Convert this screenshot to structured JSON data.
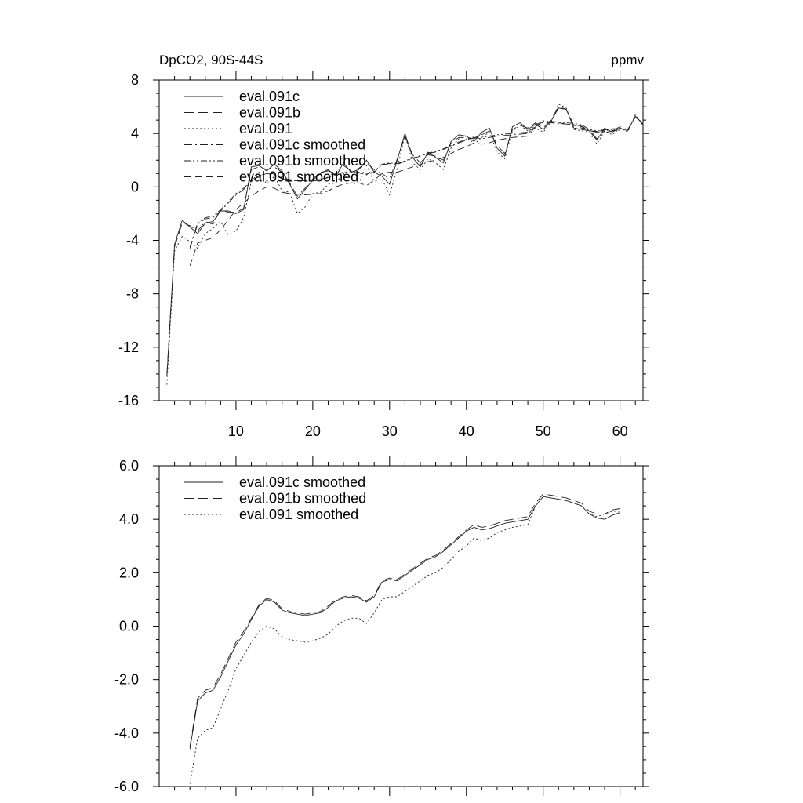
{
  "chart_data": [
    {
      "type": "line",
      "title": "DpCO2, 90S-44S",
      "units": "ppmv",
      "xlim": [
        0,
        63
      ],
      "ylim": [
        -16,
        8
      ],
      "xticks": [
        10,
        20,
        30,
        40,
        50,
        60
      ],
      "yticks": [
        -16,
        -12,
        -8,
        -4,
        0,
        4,
        8
      ],
      "ytick_labels": [
        "-16",
        "-12",
        "-8",
        "-4",
        "0",
        "4",
        "8"
      ],
      "legend": "top-left",
      "series": [
        {
          "name": "eval.091c",
          "dash": "solid",
          "x": [
            1,
            2,
            3,
            4,
            5,
            6,
            7,
            8,
            9,
            10,
            11,
            12,
            13,
            14,
            15,
            16,
            17,
            18,
            19,
            20,
            21,
            22,
            23,
            24,
            25,
            26,
            27,
            28,
            29,
            30,
            31,
            32,
            33,
            34,
            35,
            36,
            37,
            38,
            39,
            40,
            41,
            42,
            43,
            44,
            45,
            46,
            47,
            48,
            49,
            50,
            51,
            52,
            53,
            54,
            55,
            56,
            57,
            58,
            59,
            60,
            61,
            62,
            63
          ],
          "y": [
            -14.2,
            -4.3,
            -2.5,
            -3,
            -3.5,
            -2.7,
            -2.6,
            -1.8,
            -1.8,
            -2,
            -1.7,
            1.5,
            1.6,
            1.2,
            1.7,
            1.2,
            0.2,
            -0.9,
            -0.2,
            0.5,
            1,
            1.3,
            0.8,
            1.8,
            1.1,
            1.3,
            2,
            1.1,
            0.8,
            0.2,
            2,
            4,
            2.2,
            1.5,
            2.6,
            2.2,
            1.8,
            3.4,
            3.9,
            3.8,
            3.4,
            4.1,
            4.4,
            2.9,
            2.3,
            4.5,
            4.8,
            4.3,
            4.7,
            4.3,
            4.9,
            5.9,
            5.8,
            4.4,
            4.3,
            4.2,
            3.5,
            4.4,
            4.1,
            4.4,
            4.2,
            5.3,
            4.7
          ]
        },
        {
          "name": "eval.091b",
          "dash": "long-dash",
          "x": [
            1,
            2,
            3,
            4,
            5,
            6,
            7,
            8,
            9,
            10,
            11,
            12,
            13,
            14,
            15,
            16,
            17,
            18,
            19,
            20,
            21,
            22,
            23,
            24,
            25,
            26,
            27,
            28,
            29,
            30,
            31,
            32,
            33,
            34,
            35,
            36,
            37,
            38,
            39,
            40,
            41,
            42,
            43,
            44,
            45,
            46,
            47,
            48,
            49,
            50,
            51,
            52,
            53,
            54,
            55,
            56,
            57,
            58,
            59,
            60,
            61,
            62,
            63
          ],
          "y": [
            -14,
            -4.5,
            -2.7,
            -2.9,
            -3.3,
            -2.6,
            -2.8,
            -1.7,
            -1.9,
            -1.9,
            -1.6,
            1.3,
            1.5,
            1.3,
            1.5,
            1.1,
            0.3,
            -0.7,
            -0.1,
            0.6,
            1.1,
            1.2,
            0.9,
            1.6,
            1.2,
            1.4,
            1.8,
            1.3,
            1,
            0.6,
            2.1,
            3.8,
            2.4,
            1.8,
            2.4,
            2.3,
            2,
            3.3,
            3.7,
            3.7,
            3.6,
            3.9,
            4.2,
            3.1,
            2.5,
            4.3,
            4.6,
            4.4,
            4.8,
            4.4,
            5,
            6,
            5.8,
            4.6,
            4.4,
            4.3,
            3.6,
            4.3,
            4.2,
            4.5,
            4.3,
            5.2,
            4.8
          ]
        },
        {
          "name": "eval.091",
          "dash": "dotted",
          "x": [
            1,
            2,
            3,
            4,
            5,
            6,
            7,
            8,
            9,
            10,
            11,
            12,
            13,
            14,
            15,
            16,
            17,
            18,
            19,
            20,
            21,
            22,
            23,
            24,
            25,
            26,
            27,
            28,
            29,
            30,
            31,
            32,
            33,
            34,
            35,
            36,
            37,
            38,
            39,
            40,
            41,
            42,
            43,
            44,
            45,
            46,
            47,
            48,
            49,
            50,
            51,
            52,
            53,
            54,
            55,
            56,
            57,
            58,
            59,
            60,
            61,
            62,
            63
          ],
          "y": [
            -14.8,
            -4.8,
            -3.7,
            -4.1,
            -4.6,
            -3.5,
            -3.1,
            -2.6,
            -3.6,
            -3.3,
            -2.3,
            0.4,
            1.1,
            0.2,
            0.8,
            -0.3,
            -0.4,
            -2,
            -1.5,
            -0.5,
            -0.4,
            0.2,
            0.3,
            1,
            0.2,
            0.3,
            1.6,
            0.4,
            0.6,
            -0.6,
            1.4,
            3.9,
            1.8,
            1.3,
            2.1,
            1.8,
            1.3,
            2.9,
            3.6,
            3.8,
            3.2,
            3.7,
            4.1,
            2.6,
            2.1,
            4.2,
            4.6,
            4.2,
            4.4,
            4.1,
            4.8,
            6.2,
            5.9,
            4.3,
            4.2,
            4.1,
            3.2,
            4.2,
            3.9,
            4.4,
            4.1,
            5.4,
            4.6
          ]
        },
        {
          "name": "eval.091c smoothed",
          "dash": "dash-dot",
          "x": [
            4,
            5,
            6,
            7,
            8,
            9,
            10,
            11,
            12,
            13,
            14,
            15,
            16,
            17,
            18,
            19,
            20,
            21,
            22,
            23,
            24,
            25,
            26,
            27,
            28,
            29,
            30,
            31,
            32,
            33,
            34,
            35,
            36,
            37,
            38,
            39,
            40,
            41,
            42,
            43,
            44,
            45,
            46,
            47,
            48,
            49,
            50,
            51,
            52,
            53,
            54,
            55,
            56,
            57,
            58,
            59,
            60
          ],
          "y": [
            -4.6,
            -2.8,
            -2.4,
            -2.3,
            -1.8,
            -1.2,
            -0.6,
            -0.2,
            0.4,
            0.8,
            1,
            0.9,
            0.6,
            0.5,
            0.45,
            0.4,
            0.45,
            0.5,
            0.7,
            0.95,
            1.05,
            1.1,
            1.05,
            0.9,
            1.1,
            1.65,
            1.75,
            1.7,
            1.9,
            2.1,
            2.3,
            2.5,
            2.6,
            2.8,
            3.05,
            3.3,
            3.5,
            3.7,
            3.6,
            3.7,
            3.8,
            3.85,
            3.9,
            3.95,
            4.0,
            4.5,
            4.85,
            4.8,
            4.75,
            4.7,
            4.65,
            4.55,
            4.2,
            4.1,
            4.05,
            4.2,
            4.25
          ]
        },
        {
          "name": "eval.091b smoothed",
          "dash": "dash-dot-dot",
          "x": [
            4,
            5,
            6,
            7,
            8,
            9,
            10,
            11,
            12,
            13,
            14,
            15,
            16,
            17,
            18,
            19,
            20,
            21,
            22,
            23,
            24,
            25,
            26,
            27,
            28,
            29,
            30,
            31,
            32,
            33,
            34,
            35,
            36,
            37,
            38,
            39,
            40,
            41,
            42,
            43,
            44,
            45,
            46,
            47,
            48,
            49,
            50,
            51,
            52,
            53,
            54,
            55,
            56,
            57,
            58,
            59,
            60
          ],
          "y": [
            -4.5,
            -2.7,
            -2.3,
            -2.2,
            -1.7,
            -1.1,
            -0.5,
            -0.1,
            0.45,
            0.85,
            1.05,
            0.95,
            0.65,
            0.55,
            0.5,
            0.45,
            0.5,
            0.55,
            0.75,
            1.0,
            1.1,
            1.15,
            1.1,
            0.95,
            1.15,
            1.7,
            1.8,
            1.75,
            1.95,
            2.15,
            2.35,
            2.55,
            2.65,
            2.85,
            3.1,
            3.35,
            3.55,
            3.8,
            3.7,
            3.8,
            3.9,
            3.95,
            4.0,
            4.05,
            4.1,
            4.6,
            4.95,
            4.9,
            4.85,
            4.8,
            4.75,
            4.65,
            4.3,
            4.2,
            4.2,
            4.3,
            4.35
          ]
        },
        {
          "name": "eval.091 smoothed",
          "dash": "dashed",
          "x": [
            4,
            5,
            6,
            7,
            8,
            9,
            10,
            11,
            12,
            13,
            14,
            15,
            16,
            17,
            18,
            19,
            20,
            21,
            22,
            23,
            24,
            25,
            26,
            27,
            28,
            29,
            30,
            31,
            32,
            33,
            34,
            35,
            36,
            37,
            38,
            39,
            40,
            41,
            42,
            43,
            44,
            45,
            46,
            47,
            48,
            49,
            50,
            51,
            52,
            53,
            54,
            55,
            56,
            57,
            58,
            59,
            60
          ],
          "y": [
            -5.9,
            -4.2,
            -4,
            -3.8,
            -3.2,
            -2.5,
            -1.7,
            -1.2,
            -0.7,
            -0.3,
            0,
            -0.1,
            -0.4,
            -0.5,
            -0.55,
            -0.6,
            -0.55,
            -0.5,
            -0.3,
            0,
            0.2,
            0.3,
            0.3,
            0.1,
            0.5,
            1,
            1.1,
            1.1,
            1.3,
            1.5,
            1.7,
            1.9,
            2.0,
            2.2,
            2.5,
            2.8,
            3.0,
            3.3,
            3.2,
            3.3,
            3.5,
            3.6,
            3.7,
            3.75,
            3.8,
            4.5,
            4.9,
            4.85,
            4.8,
            4.7,
            4.6,
            4.5,
            4.2,
            4.15,
            4.3,
            4.35,
            4.35
          ]
        }
      ]
    },
    {
      "type": "line",
      "xlim": [
        0,
        63
      ],
      "ylim": [
        -6,
        6
      ],
      "yticks": [
        -6,
        -4,
        -2,
        0,
        2,
        4,
        6
      ],
      "ytick_labels": [
        "-6.0",
        "-4.0",
        "-2.0",
        "0.0",
        "2.0",
        "4.0",
        "6.0"
      ],
      "legend": "top-left",
      "series": [
        {
          "name": "eval.091c smoothed",
          "dash": "solid",
          "x": [
            4,
            5,
            6,
            7,
            8,
            9,
            10,
            11,
            12,
            13,
            14,
            15,
            16,
            17,
            18,
            19,
            20,
            21,
            22,
            23,
            24,
            25,
            26,
            27,
            28,
            29,
            30,
            31,
            32,
            33,
            34,
            35,
            36,
            37,
            38,
            39,
            40,
            41,
            42,
            43,
            44,
            45,
            46,
            47,
            48,
            49,
            50,
            51,
            52,
            53,
            54,
            55,
            56,
            57,
            58,
            59,
            60
          ],
          "y": [
            -4.6,
            -2.8,
            -2.5,
            -2.4,
            -1.9,
            -1.3,
            -0.7,
            -0.3,
            0.25,
            0.75,
            1,
            0.9,
            0.6,
            0.5,
            0.45,
            0.4,
            0.45,
            0.5,
            0.7,
            0.95,
            1.05,
            1.1,
            1.05,
            0.9,
            1.1,
            1.65,
            1.75,
            1.7,
            1.9,
            2.1,
            2.3,
            2.5,
            2.6,
            2.8,
            3.05,
            3.3,
            3.55,
            3.7,
            3.6,
            3.65,
            3.75,
            3.85,
            3.9,
            3.95,
            4.0,
            4.5,
            4.85,
            4.8,
            4.75,
            4.7,
            4.6,
            4.5,
            4.2,
            4.05,
            4.0,
            4.15,
            4.25
          ]
        },
        {
          "name": "eval.091b smoothed",
          "dash": "long-dash",
          "x": [
            4,
            5,
            6,
            7,
            8,
            9,
            10,
            11,
            12,
            13,
            14,
            15,
            16,
            17,
            18,
            19,
            20,
            21,
            22,
            23,
            24,
            25,
            26,
            27,
            28,
            29,
            30,
            31,
            32,
            33,
            34,
            35,
            36,
            37,
            38,
            39,
            40,
            41,
            42,
            43,
            44,
            45,
            46,
            47,
            48,
            49,
            50,
            51,
            52,
            53,
            54,
            55,
            56,
            57,
            58,
            59,
            60
          ],
          "y": [
            -4.5,
            -2.7,
            -2.4,
            -2.3,
            -1.8,
            -1.2,
            -0.6,
            -0.2,
            0.3,
            0.8,
            1.05,
            0.95,
            0.65,
            0.55,
            0.5,
            0.45,
            0.5,
            0.55,
            0.75,
            1.0,
            1.1,
            1.15,
            1.1,
            0.95,
            1.15,
            1.7,
            1.8,
            1.75,
            1.95,
            2.15,
            2.35,
            2.55,
            2.65,
            2.85,
            3.1,
            3.35,
            3.6,
            3.8,
            3.7,
            3.75,
            3.85,
            3.95,
            4.0,
            4.05,
            4.1,
            4.6,
            4.95,
            4.9,
            4.85,
            4.8,
            4.7,
            4.6,
            4.3,
            4.2,
            4.2,
            4.35,
            4.4
          ]
        },
        {
          "name": "eval.091 smoothed",
          "dash": "dotted",
          "x": [
            4,
            5,
            6,
            7,
            8,
            9,
            10,
            11,
            12,
            13,
            14,
            15,
            16,
            17,
            18,
            19,
            20,
            21,
            22,
            23,
            24,
            25,
            26,
            27,
            28,
            29,
            30,
            31,
            32,
            33,
            34,
            35,
            36,
            37,
            38,
            39,
            40,
            41,
            42,
            43,
            44,
            45,
            46,
            47,
            48,
            49,
            50,
            51,
            52,
            53,
            54,
            55,
            56,
            57,
            58,
            59,
            60
          ],
          "y": [
            -5.9,
            -4.2,
            -3.9,
            -3.8,
            -3.1,
            -2.4,
            -1.6,
            -1.1,
            -0.6,
            -0.2,
            0,
            -0.1,
            -0.4,
            -0.5,
            -0.55,
            -0.6,
            -0.55,
            -0.45,
            -0.3,
            0,
            0.2,
            0.3,
            0.3,
            0.1,
            0.5,
            1,
            1.1,
            1.1,
            1.3,
            1.5,
            1.7,
            1.9,
            2.0,
            2.2,
            2.5,
            2.8,
            3.0,
            3.3,
            3.2,
            3.3,
            3.5,
            3.6,
            3.7,
            3.75,
            3.8,
            4.5,
            4.85,
            4.8,
            4.75,
            4.7,
            4.6,
            4.5,
            4.2,
            4.1,
            4.2,
            4.3,
            4.3
          ]
        }
      ]
    }
  ]
}
